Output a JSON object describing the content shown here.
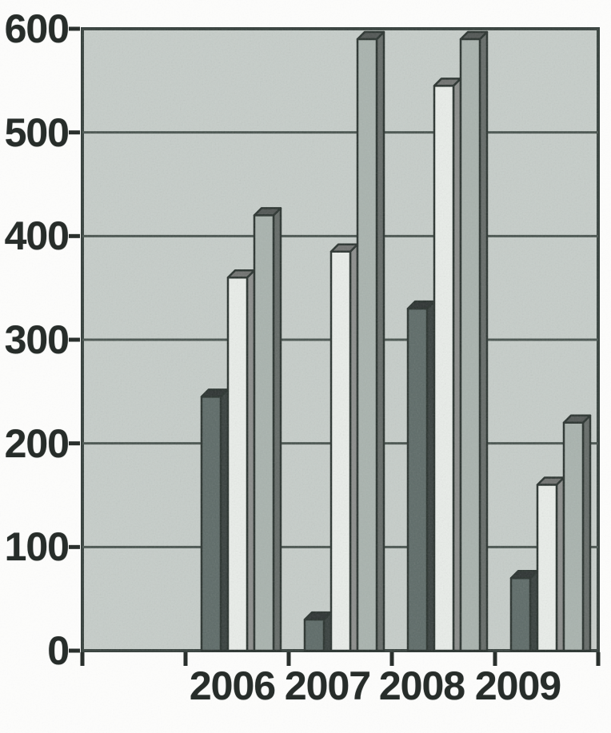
{
  "figure": {
    "background": "#fdfdfc"
  },
  "chart_data": {
    "type": "bar",
    "title": "",
    "xlabel": "",
    "ylabel": "",
    "categories": [
      "2006",
      "2007",
      "2008",
      "2009"
    ],
    "series": [
      {
        "name": "series-1-dark-gray",
        "color": "#5e6b68",
        "values": [
          245,
          30,
          330,
          70
        ]
      },
      {
        "name": "series-2-off-white",
        "color": "#e9ede9",
        "values": [
          360,
          385,
          545,
          160
        ]
      },
      {
        "name": "series-3-light-gray",
        "color": "#a9b3ae",
        "values": [
          420,
          590,
          590,
          220
        ]
      }
    ],
    "ylim": [
      0,
      600
    ],
    "y_ticks": [
      0,
      100,
      200,
      300,
      400,
      500,
      600
    ],
    "y_tick_labels": [
      "0",
      "100",
      "200",
      "300",
      "400",
      "500",
      "600"
    ],
    "grid": true,
    "legend": false,
    "style": "pseudo-3d-grouped-columns-grayscale-scan",
    "plot_background": "#c6cdc9",
    "gridline_color": "#49544f",
    "plot_border_color": "#39433f",
    "bar_outline_color": "#2a332f",
    "axis_text_color": "#272d2a"
  }
}
